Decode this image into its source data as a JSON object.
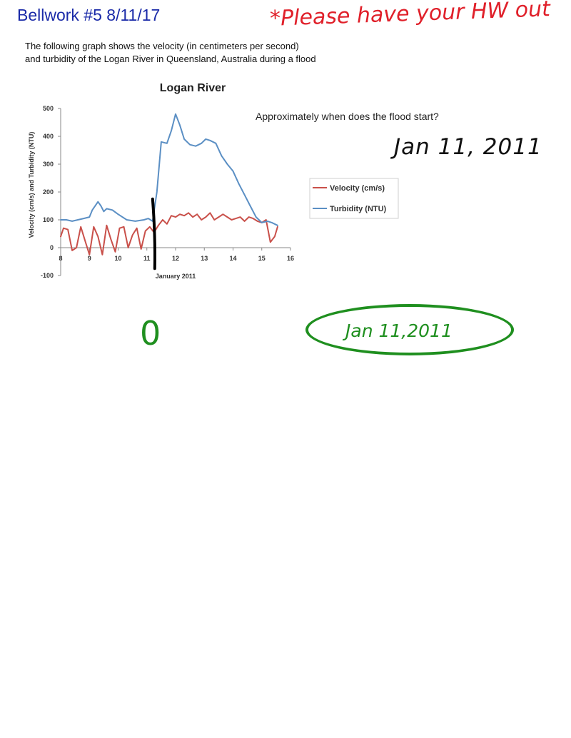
{
  "header": {
    "title": "Bellwork #5 8/11/17",
    "note": "*Please have your HW out"
  },
  "intro": {
    "line1": "The following graph shows the velocity (in centimeters per second)",
    "line2": "and turbidity of the Logan River in Queensland, Australia during a flood"
  },
  "question": "Approximately when does the flood start?",
  "answer": "Jan 11, 2011",
  "annotations": {
    "zero": "0",
    "circled_answer": "Jan 11,2011"
  },
  "colors": {
    "title": "#1a2aa8",
    "velocity": "#c9504a",
    "turbidity": "#5b8fc4",
    "red_ink": "#e0202a",
    "green_ink": "#1f8f1f"
  },
  "chart_data": {
    "type": "line",
    "title": "Logan River",
    "xlabel": "January 2011",
    "ylabel": "Velocity (cm/s) and Turbidity (NTU)",
    "xlim": [
      8,
      16
    ],
    "ylim": [
      -100,
      500
    ],
    "xticks": [
      8,
      9,
      10,
      11,
      12,
      13,
      14,
      15,
      16
    ],
    "yticks": [
      -100,
      0,
      100,
      200,
      300,
      400,
      500
    ],
    "legend_position": "right",
    "marker_x": 11.25,
    "series": [
      {
        "name": "Velocity (cm/s)",
        "color": "#c9504a",
        "x": [
          8.0,
          8.1,
          8.25,
          8.4,
          8.55,
          8.7,
          8.85,
          9.0,
          9.15,
          9.3,
          9.45,
          9.6,
          9.75,
          9.9,
          10.05,
          10.2,
          10.35,
          10.5,
          10.65,
          10.8,
          10.95,
          11.1,
          11.25,
          11.4,
          11.55,
          11.7,
          11.85,
          12.0,
          12.15,
          12.3,
          12.45,
          12.6,
          12.75,
          12.9,
          13.05,
          13.2,
          13.35,
          13.5,
          13.65,
          13.8,
          13.95,
          14.1,
          14.25,
          14.4,
          14.55,
          14.7,
          14.85,
          15.0,
          15.15,
          15.3,
          15.45,
          15.55
        ],
        "y": [
          40,
          70,
          65,
          -10,
          0,
          75,
          25,
          -25,
          75,
          40,
          -25,
          80,
          30,
          -15,
          70,
          75,
          0,
          45,
          70,
          -5,
          60,
          75,
          55,
          80,
          100,
          85,
          115,
          110,
          120,
          115,
          125,
          110,
          120,
          100,
          110,
          125,
          100,
          110,
          120,
          110,
          100,
          105,
          110,
          95,
          110,
          105,
          95,
          90,
          100,
          20,
          40,
          75
        ]
      },
      {
        "name": "Turbidity (NTU)",
        "color": "#5b8fc4",
        "x": [
          8.0,
          8.2,
          8.4,
          8.6,
          8.8,
          9.0,
          9.1,
          9.3,
          9.4,
          9.5,
          9.6,
          9.8,
          10.0,
          10.3,
          10.6,
          10.9,
          11.05,
          11.2,
          11.35,
          11.5,
          11.7,
          11.85,
          12.0,
          12.15,
          12.3,
          12.5,
          12.7,
          12.9,
          13.05,
          13.2,
          13.4,
          13.6,
          13.8,
          14.0,
          14.2,
          14.4,
          14.6,
          14.8,
          15.0,
          15.2,
          15.35,
          15.55
        ],
        "y": [
          100,
          100,
          95,
          100,
          105,
          110,
          135,
          165,
          150,
          130,
          140,
          135,
          120,
          100,
          95,
          100,
          105,
          95,
          200,
          380,
          375,
          420,
          480,
          440,
          390,
          370,
          365,
          375,
          390,
          385,
          375,
          330,
          300,
          275,
          230,
          190,
          150,
          110,
          90,
          95,
          90,
          80
        ]
      }
    ]
  }
}
